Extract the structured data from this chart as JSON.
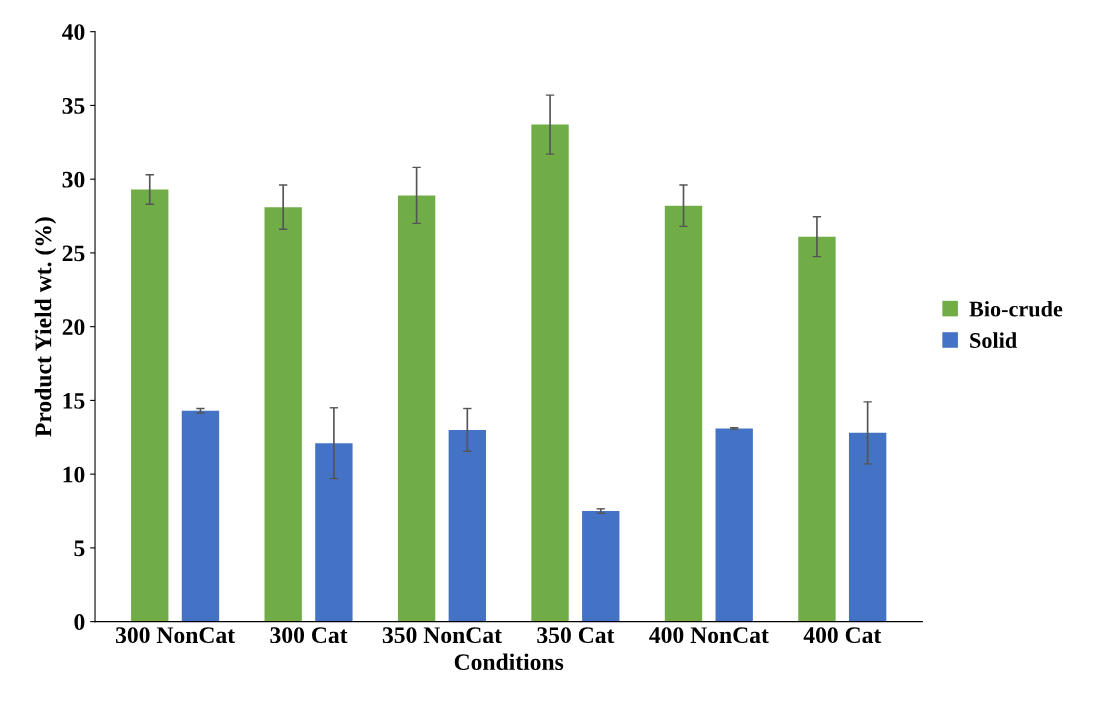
{
  "chart_data": {
    "type": "bar",
    "xlabel": "Conditions",
    "ylabel": "Product Yield wt. (%)",
    "categories": [
      "300 NonCat",
      "300 Cat",
      "350 NonCat",
      "350 Cat",
      "400 NonCat",
      "400 Cat"
    ],
    "series": [
      {
        "name": "Bio-crude",
        "color": "#70ad47",
        "values": [
          29.3,
          28.1,
          28.9,
          33.7,
          28.2,
          26.1
        ],
        "errors": [
          1.0,
          1.5,
          1.9,
          2.0,
          1.4,
          1.35
        ]
      },
      {
        "name": "Solid",
        "color": "#4472c4",
        "values": [
          14.3,
          12.1,
          13.0,
          7.5,
          13.1,
          12.8
        ],
        "errors": [
          0.15,
          2.4,
          1.45,
          0.15,
          0.05,
          2.1
        ]
      }
    ],
    "ylim": [
      0,
      40
    ],
    "yticks": [
      0,
      5,
      10,
      15,
      20,
      25,
      30,
      35,
      40
    ],
    "grid": false,
    "legend": "right"
  }
}
